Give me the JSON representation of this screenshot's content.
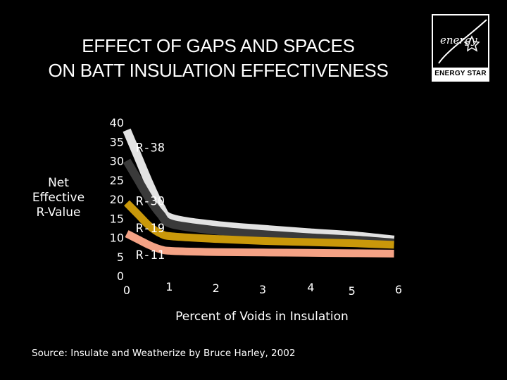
{
  "title_lines": [
    "EFFECT OF GAPS AND SPACES",
    "ON BATT INSULATION EFFECTIVENESS"
  ],
  "logo": {
    "band_text": "ENERGY STAR",
    "script_text": "energy"
  },
  "colors": {
    "background": "#000000",
    "text": "#ffffff",
    "r38": "#e2e2e2",
    "r30": "#3a3a3a",
    "r19": "#c9980a",
    "r11": "#f4a285"
  },
  "chart_data": {
    "type": "line",
    "title": "EFFECT OF GAPS AND SPACES ON BATT INSULATION EFFECTIVENESS",
    "ylabel": "Net Effective R-Value",
    "xlabel": "Percent of Voids in Insulation",
    "xlim": [
      0,
      6
    ],
    "ylim": [
      0,
      40
    ],
    "yticks": [
      "0",
      "5",
      "10",
      "15",
      "20",
      "25",
      "30",
      "35",
      "40"
    ],
    "xticks": [
      "0",
      "1",
      "2",
      "3",
      "4",
      "5",
      "6"
    ],
    "grid": false,
    "legend": "inline labels on y-axis",
    "series": [
      {
        "name": "R-38",
        "x": [
          0,
          0.25,
          0.5,
          0.75,
          1,
          2,
          3,
          4,
          5,
          5.9
        ],
        "values": [
          38,
          31,
          24,
          18,
          15,
          13.2,
          12.2,
          11.3,
          10.5,
          9.4
        ]
      },
      {
        "name": "R-30",
        "x": [
          0,
          0.25,
          0.5,
          0.75,
          1,
          2,
          3,
          4,
          5,
          5.9
        ],
        "values": [
          30,
          25,
          20,
          16,
          13.5,
          11.8,
          10.8,
          10,
          9.4,
          8.6
        ]
      },
      {
        "name": "R-19",
        "x": [
          0,
          0.25,
          0.5,
          0.75,
          1,
          2,
          3,
          4,
          5,
          5.9
        ],
        "values": [
          19,
          16,
          13,
          11,
          10.3,
          9.6,
          9.1,
          8.8,
          8.5,
          8.1
        ]
      },
      {
        "name": "R-11",
        "x": [
          0,
          0.25,
          0.5,
          0.75,
          1,
          2,
          3,
          4,
          5,
          5.9
        ],
        "values": [
          11,
          9.5,
          8,
          6.9,
          6.5,
          6.2,
          6.1,
          6.0,
          5.9,
          5.8
        ]
      }
    ]
  },
  "source": "Source: Insulate and Weatherize by Bruce Harley, 2002"
}
